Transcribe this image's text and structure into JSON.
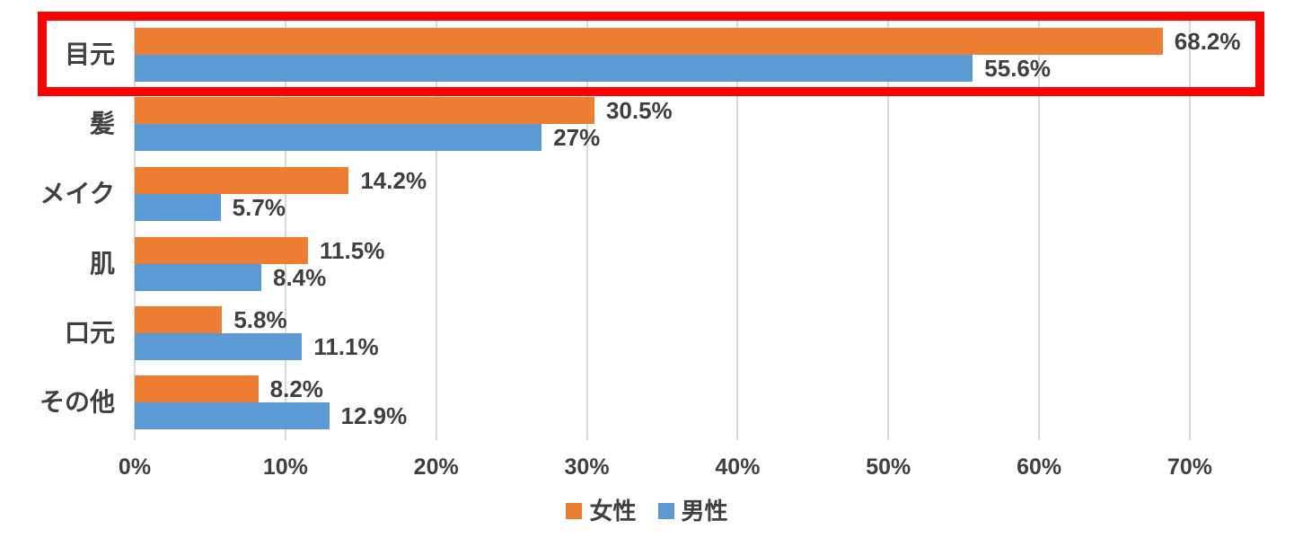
{
  "chart_data": {
    "type": "bar",
    "orientation": "horizontal",
    "title": "",
    "categories": [
      "目元",
      "髪",
      "メイク",
      "肌",
      "口元",
      "その他"
    ],
    "series": [
      {
        "name": "女性",
        "color": "#ED7D31",
        "values": [
          68.2,
          30.5,
          14.2,
          11.5,
          5.8,
          8.2
        ],
        "value_labels": [
          "68.2%",
          "30.5%",
          "14.2%",
          "11.5%",
          "5.8%",
          "8.2%"
        ]
      },
      {
        "name": "男性",
        "color": "#5B9BD5",
        "values": [
          55.6,
          27,
          5.7,
          8.4,
          11.1,
          12.9
        ],
        "value_labels": [
          "55.6%",
          "27%",
          "5.7%",
          "8.4%",
          "11.1%",
          "12.9%"
        ]
      }
    ],
    "x_axis": {
      "min": 0,
      "max": 70,
      "ticks": [
        0,
        10,
        20,
        30,
        40,
        50,
        60,
        70
      ],
      "tick_labels": [
        "0%",
        "10%",
        "20%",
        "30%",
        "40%",
        "50%",
        "60%",
        "70%"
      ]
    },
    "legend": {
      "position": "bottom",
      "items": [
        {
          "label": "女性",
          "color": "#ED7D31"
        },
        {
          "label": "男性",
          "color": "#5B9BD5"
        }
      ]
    },
    "grid": true,
    "highlight": {
      "category": "目元",
      "border_color": "#FF0000"
    }
  },
  "colors": {
    "background": "#FFFFFF",
    "gridline": "#D9D9D9",
    "text": "#404040",
    "female_bar": "#ED7D31",
    "male_bar": "#5B9BD5",
    "highlight_border": "#FF0000"
  }
}
